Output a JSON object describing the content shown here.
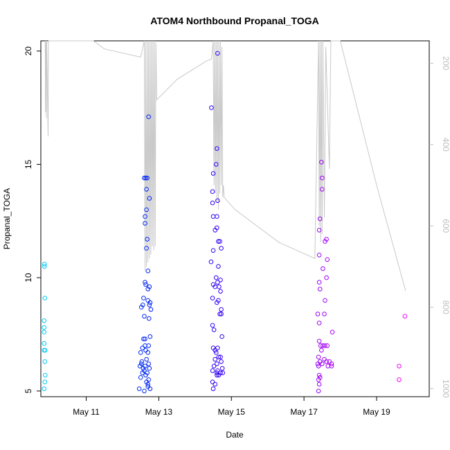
{
  "chart_data": {
    "type": "scatter",
    "title": "ATOM4 Northbound Propanal_TOGA",
    "xlabel": "Date",
    "ylabel": "Propanal_TOGA",
    "xlim": [
      9.75,
      20.45
    ],
    "ylim": [
      4.75,
      20.45
    ],
    "x_ticks": [
      {
        "value": 11,
        "label": "May 11"
      },
      {
        "value": 13,
        "label": "May 13"
      },
      {
        "value": 15,
        "label": "May 15"
      },
      {
        "value": 17,
        "label": "May 17"
      },
      {
        "value": 19,
        "label": "May 19"
      }
    ],
    "y_ticks": [
      5,
      10,
      15,
      20
    ],
    "secondary_axis": {
      "side": "right",
      "lim": [
        1020,
        145
      ],
      "ticks": [
        200,
        400,
        600,
        800,
        1000
      ],
      "line_color": "#c8c8c8",
      "path": [
        [
          9.87,
          145
        ],
        [
          9.88,
          320
        ],
        [
          9.89,
          145
        ],
        [
          9.9,
          335
        ],
        [
          9.91,
          145
        ],
        [
          9.95,
          380
        ],
        [
          9.96,
          145
        ],
        [
          10.1,
          145
        ],
        [
          11.2,
          145
        ],
        [
          11.5,
          165
        ],
        [
          12.5,
          185
        ],
        [
          12.6,
          145
        ],
        [
          12.62,
          710
        ],
        [
          12.64,
          145
        ],
        [
          12.66,
          700
        ],
        [
          12.68,
          145
        ],
        [
          12.7,
          690
        ],
        [
          12.72,
          145
        ],
        [
          12.74,
          680
        ],
        [
          12.76,
          145
        ],
        [
          12.78,
          670
        ],
        [
          12.8,
          145
        ],
        [
          12.82,
          650
        ],
        [
          12.84,
          145
        ],
        [
          12.86,
          660
        ],
        [
          12.88,
          145
        ],
        [
          12.9,
          650
        ],
        [
          12.92,
          150
        ],
        [
          12.94,
          290
        ],
        [
          13.5,
          240
        ],
        [
          14.3,
          195
        ],
        [
          14.45,
          190
        ],
        [
          14.5,
          145
        ],
        [
          14.52,
          500
        ],
        [
          14.54,
          145
        ],
        [
          14.56,
          520
        ],
        [
          14.58,
          145
        ],
        [
          14.6,
          540
        ],
        [
          14.62,
          145
        ],
        [
          14.64,
          560
        ],
        [
          14.66,
          145
        ],
        [
          14.68,
          520
        ],
        [
          14.7,
          145
        ],
        [
          14.72,
          500
        ],
        [
          14.74,
          160
        ],
        [
          14.76,
          530
        ],
        [
          14.78,
          500
        ],
        [
          14.8,
          530
        ],
        [
          15.1,
          560
        ],
        [
          16.3,
          640
        ],
        [
          17.3,
          680
        ],
        [
          17.4,
          145
        ],
        [
          17.42,
          600
        ],
        [
          17.44,
          145
        ],
        [
          17.46,
          640
        ],
        [
          17.48,
          145
        ],
        [
          17.5,
          620
        ],
        [
          17.52,
          145
        ],
        [
          17.56,
          580
        ],
        [
          17.6,
          160
        ],
        [
          17.7,
          460
        ],
        [
          17.74,
          145
        ],
        [
          17.85,
          145
        ],
        [
          17.9,
          145
        ],
        [
          18.0,
          145
        ],
        [
          19.0,
          500
        ],
        [
          19.8,
          760
        ]
      ]
    },
    "series": [
      {
        "name": "Propanal_TOGA",
        "points": [
          [
            9.85,
            10.6
          ],
          [
            9.85,
            10.5
          ],
          [
            9.86,
            9.1
          ],
          [
            9.84,
            8.1
          ],
          [
            9.84,
            7.8
          ],
          [
            9.84,
            7.6
          ],
          [
            9.84,
            7.1
          ],
          [
            9.84,
            6.8
          ],
          [
            9.87,
            6.8
          ],
          [
            9.86,
            6.3
          ],
          [
            9.87,
            5.7
          ],
          [
            9.86,
            5.4
          ],
          [
            9.84,
            5.1
          ],
          [
            12.52,
            8.7
          ],
          [
            12.56,
            8.8
          ],
          [
            12.58,
            9.1
          ],
          [
            12.5,
            6.7
          ],
          [
            12.55,
            6.9
          ],
          [
            12.52,
            6.2
          ],
          [
            12.48,
            6.1
          ],
          [
            12.53,
            6.3
          ],
          [
            12.57,
            6.0
          ],
          [
            12.5,
            5.6
          ],
          [
            12.55,
            5.8
          ],
          [
            12.46,
            5.1
          ],
          [
            12.6,
            5.0
          ],
          [
            12.6,
            8.3
          ],
          [
            12.62,
            7.3
          ],
          [
            12.58,
            7.3
          ],
          [
            12.62,
            7.0
          ],
          [
            12.64,
            6.8
          ],
          [
            12.66,
            6.4
          ],
          [
            12.62,
            6.1
          ],
          [
            12.6,
            5.9
          ],
          [
            12.64,
            5.7
          ],
          [
            12.6,
            14.4
          ],
          [
            12.64,
            14.4
          ],
          [
            12.68,
            14.4
          ],
          [
            12.66,
            13.9
          ],
          [
            12.66,
            13.0
          ],
          [
            12.62,
            12.7
          ],
          [
            12.62,
            12.4
          ],
          [
            12.68,
            11.7
          ],
          [
            12.66,
            11.3
          ],
          [
            12.7,
            10.3
          ],
          [
            12.62,
            9.8
          ],
          [
            12.64,
            9.7
          ],
          [
            12.7,
            9.5
          ],
          [
            12.74,
            9.6
          ],
          [
            12.72,
            17.1
          ],
          [
            12.74,
            13.5
          ],
          [
            12.7,
            9.0
          ],
          [
            12.74,
            8.8
          ],
          [
            12.76,
            8.9
          ],
          [
            12.78,
            8.6
          ],
          [
            12.73,
            8.2
          ],
          [
            12.76,
            7.4
          ],
          [
            12.72,
            7.0
          ],
          [
            12.7,
            6.7
          ],
          [
            12.72,
            6.2
          ],
          [
            12.74,
            6.0
          ],
          [
            12.68,
            5.8
          ],
          [
            12.72,
            5.5
          ],
          [
            12.7,
            5.2
          ],
          [
            12.76,
            5.1
          ],
          [
            12.7,
            5.3
          ],
          [
            12.66,
            5.4
          ],
          [
            14.45,
            17.5
          ],
          [
            14.62,
            19.9
          ],
          [
            14.6,
            15.7
          ],
          [
            14.58,
            15.0
          ],
          [
            14.5,
            14.6
          ],
          [
            14.48,
            13.8
          ],
          [
            14.48,
            13.3
          ],
          [
            14.62,
            13.4
          ],
          [
            14.5,
            12.7
          ],
          [
            14.6,
            12.7
          ],
          [
            14.55,
            12.1
          ],
          [
            14.6,
            12.2
          ],
          [
            14.64,
            11.6
          ],
          [
            14.68,
            11.6
          ],
          [
            14.5,
            11.2
          ],
          [
            14.72,
            11.3
          ],
          [
            14.44,
            10.7
          ],
          [
            14.64,
            10.5
          ],
          [
            14.58,
            10.0
          ],
          [
            14.5,
            9.7
          ],
          [
            14.55,
            9.6
          ],
          [
            14.62,
            9.8
          ],
          [
            14.66,
            9.6
          ],
          [
            14.7,
            9.9
          ],
          [
            14.7,
            9.4
          ],
          [
            14.48,
            9.1
          ],
          [
            14.6,
            8.9
          ],
          [
            14.64,
            9.0
          ],
          [
            14.72,
            8.6
          ],
          [
            14.68,
            8.4
          ],
          [
            14.72,
            8.4
          ],
          [
            14.48,
            7.9
          ],
          [
            14.52,
            7.7
          ],
          [
            14.74,
            7.4
          ],
          [
            14.5,
            6.9
          ],
          [
            14.55,
            6.8
          ],
          [
            14.58,
            6.7
          ],
          [
            14.62,
            6.9
          ],
          [
            14.55,
            6.4
          ],
          [
            14.6,
            6.2
          ],
          [
            14.65,
            6.5
          ],
          [
            14.7,
            6.5
          ],
          [
            14.72,
            6.3
          ],
          [
            14.75,
            6.0
          ],
          [
            14.52,
            6.1
          ],
          [
            14.48,
            5.9
          ],
          [
            14.6,
            5.8
          ],
          [
            14.62,
            5.9
          ],
          [
            14.65,
            5.7
          ],
          [
            14.7,
            5.8
          ],
          [
            14.76,
            5.8
          ],
          [
            14.48,
            5.4
          ],
          [
            14.5,
            5.1
          ],
          [
            14.55,
            5.3
          ],
          [
            14.6,
            5.7
          ],
          [
            17.48,
            15.1
          ],
          [
            17.5,
            14.4
          ],
          [
            17.5,
            13.9
          ],
          [
            17.44,
            12.6
          ],
          [
            17.42,
            12.1
          ],
          [
            17.62,
            11.7
          ],
          [
            17.58,
            11.6
          ],
          [
            17.42,
            11.0
          ],
          [
            17.64,
            10.8
          ],
          [
            17.52,
            10.4
          ],
          [
            17.62,
            10.0
          ],
          [
            17.42,
            9.8
          ],
          [
            17.44,
            9.5
          ],
          [
            17.58,
            9.0
          ],
          [
            17.38,
            8.4
          ],
          [
            17.56,
            8.4
          ],
          [
            17.42,
            8.0
          ],
          [
            17.78,
            7.6
          ],
          [
            17.42,
            7.2
          ],
          [
            17.46,
            7.0
          ],
          [
            17.52,
            7.0
          ],
          [
            17.58,
            7.0
          ],
          [
            17.64,
            7.0
          ],
          [
            17.48,
            6.8
          ],
          [
            17.4,
            6.5
          ],
          [
            17.44,
            6.3
          ],
          [
            17.5,
            6.2
          ],
          [
            17.56,
            6.4
          ],
          [
            17.62,
            6.3
          ],
          [
            17.66,
            6.1
          ],
          [
            17.7,
            6.3
          ],
          [
            17.76,
            6.1
          ],
          [
            17.76,
            6.2
          ],
          [
            17.4,
            6.1
          ],
          [
            17.38,
            6.2
          ],
          [
            17.42,
            5.7
          ],
          [
            17.44,
            5.6
          ],
          [
            17.4,
            5.5
          ],
          [
            17.42,
            5.3
          ],
          [
            17.4,
            5.0
          ],
          [
            19.62,
            6.1
          ],
          [
            19.62,
            5.5
          ],
          [
            19.78,
            8.3
          ]
        ]
      }
    ]
  }
}
